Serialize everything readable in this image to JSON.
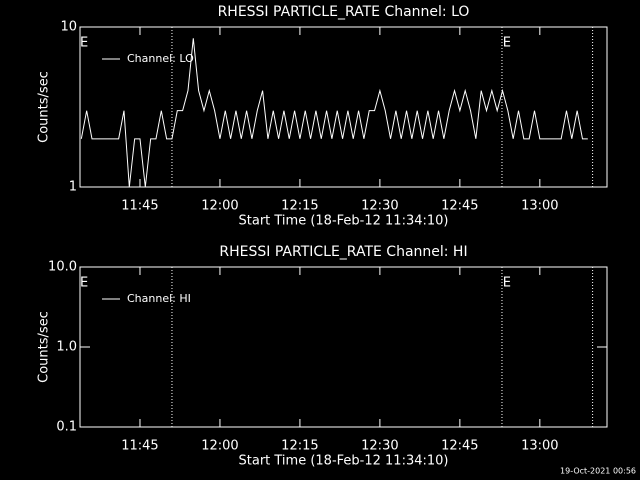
{
  "chart_data": [
    {
      "type": "line",
      "title": "RHESSI PARTICLE_RATE Channel: LO",
      "xlabel": "Start Time (18-Feb-12 11:34:10)",
      "ylabel": "Counts/sec",
      "x": [
        694,
        695,
        696,
        697,
        698,
        699,
        700,
        701,
        702,
        703,
        704,
        705,
        706,
        707,
        708,
        709,
        710,
        711,
        712,
        713,
        714,
        715,
        716,
        717,
        718,
        719,
        720,
        721,
        722,
        723,
        724,
        725,
        726,
        727,
        728,
        729,
        730,
        731,
        732,
        733,
        734,
        735,
        736,
        737,
        738,
        739,
        740,
        741,
        742,
        743,
        744,
        745,
        746,
        747,
        748,
        749,
        750,
        751,
        752,
        753,
        754,
        755,
        756,
        757,
        758,
        759,
        760,
        761,
        762,
        763,
        764,
        765,
        766,
        767,
        768,
        769,
        770,
        771,
        772,
        773,
        774,
        775,
        776,
        777,
        778,
        779,
        780,
        781,
        782,
        783,
        784,
        785,
        786,
        787,
        788,
        789
      ],
      "series": [
        {
          "name": "Channel: LO",
          "color": "#ffffff",
          "values": [
            2,
            3,
            2,
            2,
            2,
            2,
            2,
            2,
            3,
            1,
            2,
            2,
            1,
            2,
            2,
            3,
            2,
            2,
            3,
            3,
            4,
            8.5,
            4,
            3,
            4,
            3,
            2,
            3,
            2,
            3,
            2,
            3,
            2,
            3,
            4,
            2,
            3,
            2,
            3,
            2,
            3,
            2,
            3,
            2,
            3,
            2,
            3,
            2,
            3,
            2,
            3,
            2,
            3,
            2,
            3,
            3,
            4,
            3,
            2,
            3,
            2,
            3,
            2,
            3,
            2,
            3,
            2,
            3,
            2,
            3,
            4,
            3,
            4,
            3,
            2,
            4,
            3,
            4,
            3,
            4,
            3,
            2,
            3,
            2,
            2,
            3,
            2,
            2,
            2,
            2,
            2,
            3,
            2,
            3,
            2,
            2
          ]
        }
      ],
      "xlim": [
        693.75,
        792.6
      ],
      "xticks": [
        {
          "value": 705,
          "label": "11:45"
        },
        {
          "value": 720,
          "label": "12:00"
        },
        {
          "value": 735,
          "label": "12:15"
        },
        {
          "value": 750,
          "label": "12:30"
        },
        {
          "value": 765,
          "label": "12:45"
        },
        {
          "value": 780,
          "label": "13:00"
        }
      ],
      "ylim": [
        1,
        10
      ],
      "yticks": [
        1,
        10
      ],
      "ylog": true,
      "legend": "upper left",
      "markers": [
        711,
        772.9,
        789.9
      ],
      "annotations": [
        {
          "text": "E",
          "x": 694.5
        },
        {
          "text": "E",
          "x": 773.8
        }
      ]
    },
    {
      "type": "line",
      "title": "RHESSI PARTICLE_RATE Channel: HI",
      "xlabel": "Start Time (18-Feb-12 11:34:10)",
      "ylabel": "Counts/sec",
      "x": [],
      "series": [
        {
          "name": "Channel: HI",
          "color": "#ffffff",
          "values": []
        }
      ],
      "xlim": [
        693.75,
        792.6
      ],
      "xticks": [
        {
          "value": 705,
          "label": "11:45"
        },
        {
          "value": 720,
          "label": "12:00"
        },
        {
          "value": 735,
          "label": "12:15"
        },
        {
          "value": 750,
          "label": "12:30"
        },
        {
          "value": 765,
          "label": "12:45"
        },
        {
          "value": 780,
          "label": "13:00"
        }
      ],
      "ylim": [
        0.1,
        10
      ],
      "yticks": [
        0.1,
        {
          "value": 1,
          "label": "1.0"
        },
        {
          "value": 10,
          "label": "10.0"
        }
      ],
      "ylog": true,
      "legend": "upper left",
      "markers": [
        711,
        772.9,
        789.9
      ],
      "annotations": [
        {
          "text": "E",
          "x": 694.5
        },
        {
          "text": "E",
          "x": 773.8
        }
      ]
    }
  ],
  "footer": "19-Oct-2021 00:56"
}
